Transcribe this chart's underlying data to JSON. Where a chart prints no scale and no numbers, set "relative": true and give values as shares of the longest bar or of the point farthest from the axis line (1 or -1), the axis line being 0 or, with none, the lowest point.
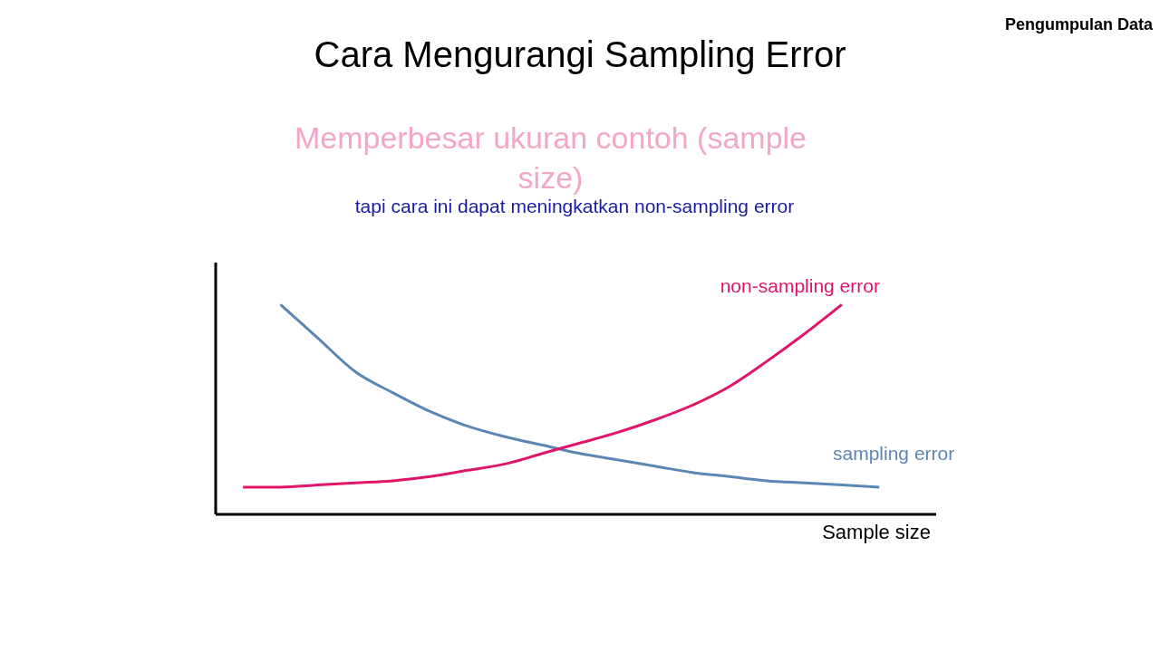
{
  "chart_data": {
    "type": "line",
    "relative": true,
    "title": "Cara Mengurangi Sampling Error",
    "subtitle": "Memperbesar ukuran contoh (sample size)",
    "xlabel": "Sample size",
    "annotations": [
      "tapi cara ini dapat meningkatkan non-sampling error",
      "Pengumpulan Data"
    ],
    "categories": [
      null,
      null,
      null,
      null,
      null,
      null,
      null,
      null,
      null,
      null,
      null,
      null,
      null,
      null,
      null,
      null,
      null,
      null
    ],
    "grid": false,
    "legend": false,
    "marker": "none",
    "line_style": "solid",
    "series": [
      {
        "name": "sampling error",
        "color": "#5b87b5",
        "values": [
          null,
          1.0,
          0.84,
          0.68,
          0.58,
          0.49,
          0.42,
          0.37,
          0.33,
          0.29,
          0.26,
          0.23,
          0.2,
          0.18,
          0.16,
          0.15,
          0.14,
          0.13
        ]
      },
      {
        "name": "non-sampling error",
        "color": "#e0156a",
        "values": [
          0.13,
          0.13,
          0.14,
          0.15,
          0.16,
          0.18,
          0.21,
          0.24,
          0.29,
          0.34,
          0.39,
          0.45,
          0.52,
          0.61,
          0.73,
          0.86,
          1.0,
          null
        ]
      }
    ]
  }
}
